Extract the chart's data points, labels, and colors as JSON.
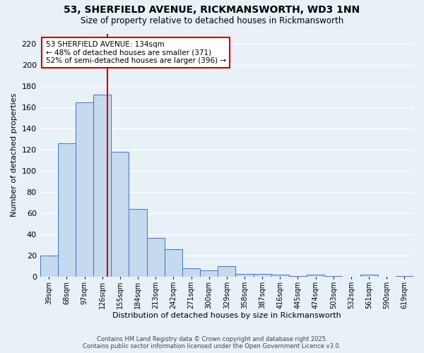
{
  "title": "53, SHERFIELD AVENUE, RICKMANSWORTH, WD3 1NN",
  "subtitle": "Size of property relative to detached houses in Rickmansworth",
  "xlabel": "Distribution of detached houses by size in Rickmansworth",
  "ylabel": "Number of detached properties",
  "categories": [
    "39sqm",
    "68sqm",
    "97sqm",
    "126sqm",
    "155sqm",
    "184sqm",
    "213sqm",
    "242sqm",
    "271sqm",
    "300sqm",
    "329sqm",
    "358sqm",
    "387sqm",
    "416sqm",
    "445sqm",
    "474sqm",
    "503sqm",
    "532sqm",
    "561sqm",
    "590sqm",
    "619sqm"
  ],
  "values": [
    20,
    126,
    165,
    172,
    118,
    64,
    37,
    26,
    8,
    6,
    10,
    3,
    3,
    2,
    1,
    2,
    1,
    0,
    2,
    0,
    1
  ],
  "bar_color": "#c5d9ef",
  "bar_edge_color": "#4472c4",
  "vline_x": 3.27,
  "vline_color": "#cc0000",
  "annotation_text": "53 SHERFIELD AVENUE: 134sqm\n← 48% of detached houses are smaller (371)\n52% of semi-detached houses are larger (396) →",
  "annotation_box_color": "white",
  "annotation_box_edge_color": "#cc0000",
  "ylim": [
    0,
    230
  ],
  "yticks": [
    0,
    20,
    40,
    60,
    80,
    100,
    120,
    140,
    160,
    180,
    200,
    220
  ],
  "background_color": "#e8f0f8",
  "grid_color": "white",
  "footer_line1": "Contains HM Land Registry data © Crown copyright and database right 2025.",
  "footer_line2": "Contains public sector information licensed under the Open Government Licence v3.0."
}
